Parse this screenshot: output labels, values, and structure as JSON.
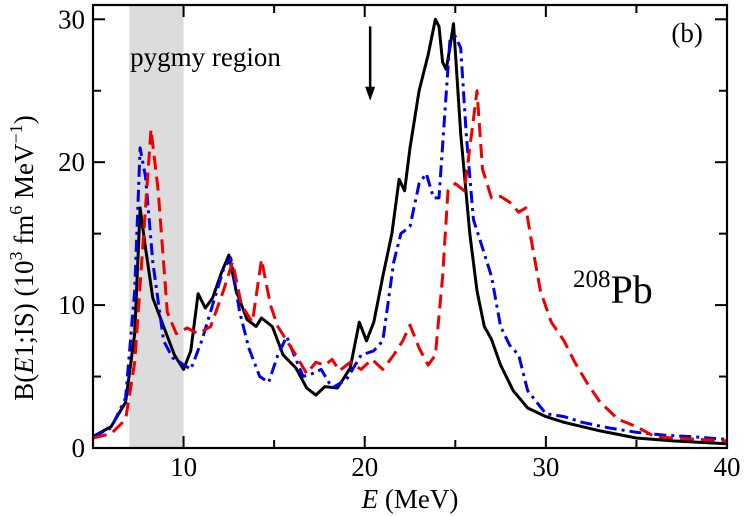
{
  "chart_data": {
    "type": "line",
    "panel_label": "(b)",
    "xlabel": {
      "italic": "E",
      "rest": " (MeV)"
    },
    "ylabel": {
      "pre": "B(",
      "italic": "E",
      "mid": "1;IS) (10",
      "sup1": "3",
      "mid2": " fm",
      "sup2": "6",
      "mid3": " MeV",
      "sup3": "−1",
      "post": ")"
    },
    "xlim": [
      5,
      40
    ],
    "ylim": [
      0,
      31
    ],
    "xticks": [
      10,
      20,
      30,
      40
    ],
    "yticks": [
      0,
      10,
      20,
      30
    ],
    "grid": false,
    "shaded_region": {
      "x": [
        7,
        10
      ],
      "label": "pygmy region",
      "color": "#dcdcdc"
    },
    "arrow": {
      "x": 20.3,
      "y_from": 29.5,
      "y_to": 24.3
    },
    "nucleus_label": {
      "mass": "208",
      "symbol": "Pb"
    },
    "series": [
      {
        "name": "solid",
        "color": "#000000",
        "dash": "",
        "points": [
          [
            5,
            0.8
          ],
          [
            6,
            1.5
          ],
          [
            6.8,
            3.2
          ],
          [
            7.3,
            8
          ],
          [
            7.6,
            16.8
          ],
          [
            7.9,
            14
          ],
          [
            8.3,
            10.5
          ],
          [
            8.9,
            8.5
          ],
          [
            9.5,
            6.5
          ],
          [
            10,
            5.5
          ],
          [
            10.4,
            6.8
          ],
          [
            10.8,
            10.8
          ],
          [
            11.2,
            9.8
          ],
          [
            11.6,
            10.5
          ],
          [
            12.1,
            12.3
          ],
          [
            12.5,
            13.5
          ],
          [
            12.9,
            11
          ],
          [
            13.5,
            9
          ],
          [
            14,
            8.5
          ],
          [
            14.3,
            9.1
          ],
          [
            14.9,
            8.5
          ],
          [
            15.5,
            6.5
          ],
          [
            16.2,
            5.6
          ],
          [
            16.8,
            4.2
          ],
          [
            17.3,
            3.7
          ],
          [
            17.8,
            4.3
          ],
          [
            18.5,
            4.2
          ],
          [
            19.2,
            5.6
          ],
          [
            19.7,
            8.8
          ],
          [
            20.1,
            7.5
          ],
          [
            20.5,
            8.8
          ],
          [
            21,
            12
          ],
          [
            21.5,
            15
          ],
          [
            21.9,
            18.8
          ],
          [
            22.2,
            18
          ],
          [
            22.5,
            21
          ],
          [
            23,
            25
          ],
          [
            23.5,
            27.5
          ],
          [
            23.9,
            30
          ],
          [
            24.1,
            29.5
          ],
          [
            24.3,
            27
          ],
          [
            24.5,
            26.5
          ],
          [
            24.7,
            28
          ],
          [
            24.9,
            29.7
          ],
          [
            25.3,
            22
          ],
          [
            25.8,
            15
          ],
          [
            26.2,
            11
          ],
          [
            26.6,
            8.5
          ],
          [
            27,
            7.6
          ],
          [
            27.5,
            5.8
          ],
          [
            28.2,
            4
          ],
          [
            29,
            2.8
          ],
          [
            30,
            2.2
          ],
          [
            31,
            1.8
          ],
          [
            33,
            1.2
          ],
          [
            35,
            0.7
          ],
          [
            37,
            0.5
          ],
          [
            40,
            0.3
          ]
        ]
      },
      {
        "name": "dash-dot",
        "color": "#0000ee",
        "dash": "12 5 3 5",
        "points": [
          [
            5,
            0.8
          ],
          [
            6,
            1.4
          ],
          [
            6.8,
            3.5
          ],
          [
            7.3,
            11
          ],
          [
            7.6,
            21
          ],
          [
            7.9,
            19
          ],
          [
            8.3,
            13
          ],
          [
            8.9,
            7.5
          ],
          [
            9.4,
            6.3
          ],
          [
            9.8,
            6
          ],
          [
            10.4,
            5.5
          ],
          [
            11,
            7.5
          ],
          [
            11.6,
            10
          ],
          [
            12.2,
            12.5
          ],
          [
            12.6,
            13.3
          ],
          [
            13.1,
            9.5
          ],
          [
            13.6,
            7
          ],
          [
            14.2,
            5
          ],
          [
            14.7,
            4.6
          ],
          [
            15.2,
            6.5
          ],
          [
            15.7,
            7.8
          ],
          [
            16.1,
            6.5
          ],
          [
            16.6,
            5
          ],
          [
            17.1,
            5.2
          ],
          [
            17.6,
            5.5
          ],
          [
            18.2,
            4.2
          ],
          [
            19,
            4.8
          ],
          [
            19.8,
            6.5
          ],
          [
            20.5,
            6.8
          ],
          [
            21,
            7.5
          ],
          [
            21.6,
            13
          ],
          [
            22,
            15
          ],
          [
            22.5,
            15.5
          ],
          [
            23,
            18.5
          ],
          [
            23.4,
            19.2
          ],
          [
            23.8,
            17.5
          ],
          [
            24.1,
            17.5
          ],
          [
            24.4,
            23
          ],
          [
            24.7,
            28.5
          ],
          [
            25,
            28.8
          ],
          [
            25.3,
            28
          ],
          [
            25.6,
            22
          ],
          [
            26,
            16
          ],
          [
            26.5,
            14
          ],
          [
            27,
            12
          ],
          [
            27.5,
            8.5
          ],
          [
            28,
            7.2
          ],
          [
            28.5,
            6.5
          ],
          [
            29,
            4
          ],
          [
            29.5,
            3.2
          ],
          [
            30,
            2.4
          ],
          [
            31,
            2.2
          ],
          [
            32,
            1.8
          ],
          [
            33.5,
            1.4
          ],
          [
            35,
            1.1
          ],
          [
            36.5,
            0.9
          ],
          [
            38,
            0.8
          ],
          [
            40,
            0.6
          ]
        ]
      },
      {
        "name": "dashed",
        "color": "#ee0000",
        "dash": "14 7",
        "points": [
          [
            5,
            0.7
          ],
          [
            6,
            1.0
          ],
          [
            6.8,
            2.0
          ],
          [
            7.3,
            6
          ],
          [
            7.8,
            15
          ],
          [
            8.2,
            22.3
          ],
          [
            8.6,
            18
          ],
          [
            9.1,
            9.5
          ],
          [
            9.6,
            8
          ],
          [
            10.2,
            8.4
          ],
          [
            10.8,
            8
          ],
          [
            11.5,
            8.5
          ],
          [
            12.2,
            11
          ],
          [
            12.7,
            13
          ],
          [
            13.2,
            10
          ],
          [
            13.8,
            8.8
          ],
          [
            14.3,
            13.2
          ],
          [
            14.8,
            10
          ],
          [
            15.2,
            8.5
          ],
          [
            15.7,
            7.5
          ],
          [
            16.2,
            6.5
          ],
          [
            16.8,
            5.2
          ],
          [
            17.3,
            6
          ],
          [
            17.8,
            5.8
          ],
          [
            18.2,
            6.2
          ],
          [
            18.6,
            5.4
          ],
          [
            19.2,
            6
          ],
          [
            19.8,
            5.5
          ],
          [
            20.4,
            6.2
          ],
          [
            21,
            5.5
          ],
          [
            21.6,
            6.5
          ],
          [
            22.1,
            7.5
          ],
          [
            22.5,
            8.6
          ],
          [
            23,
            7
          ],
          [
            23.5,
            5.8
          ],
          [
            23.9,
            6.5
          ],
          [
            24.3,
            12
          ],
          [
            24.6,
            18
          ],
          [
            25,
            18.5
          ],
          [
            25.5,
            18
          ],
          [
            25.9,
            22
          ],
          [
            26.2,
            25
          ],
          [
            26.5,
            19.5
          ],
          [
            27,
            17.5
          ],
          [
            27.5,
            17.6
          ],
          [
            28,
            17.2
          ],
          [
            28.5,
            16.5
          ],
          [
            28.9,
            16.8
          ],
          [
            29.2,
            14.5
          ],
          [
            29.7,
            11
          ],
          [
            30.3,
            8.8
          ],
          [
            31,
            7.5
          ],
          [
            31.6,
            6
          ],
          [
            32.3,
            4.5
          ],
          [
            33,
            3.2
          ],
          [
            34,
            2
          ],
          [
            35,
            1.5
          ],
          [
            36,
            0.8
          ],
          [
            37,
            0.7
          ],
          [
            38.5,
            0.6
          ],
          [
            40,
            0.5
          ]
        ]
      }
    ]
  }
}
